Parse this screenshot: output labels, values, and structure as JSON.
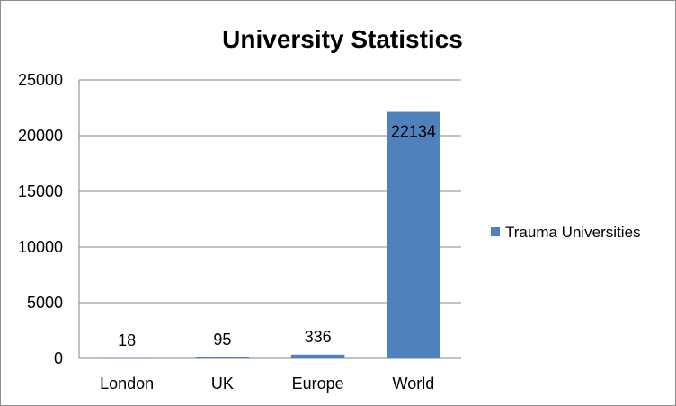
{
  "chart_data": {
    "type": "bar",
    "title": "University Statistics",
    "categories": [
      "London",
      "UK",
      "Europe",
      "World"
    ],
    "series": [
      {
        "name": "Trauma Universities",
        "values": [
          18,
          95,
          336,
          22134
        ]
      }
    ],
    "data_labels": [
      "18",
      "95",
      "336",
      "22134"
    ],
    "y_ticks": [
      "0",
      "5000",
      "10000",
      "15000",
      "20000",
      "25000"
    ],
    "ylim": [
      0,
      25000
    ],
    "grid": true,
    "legend_position": "right",
    "bar_color": "#4F81BD"
  }
}
